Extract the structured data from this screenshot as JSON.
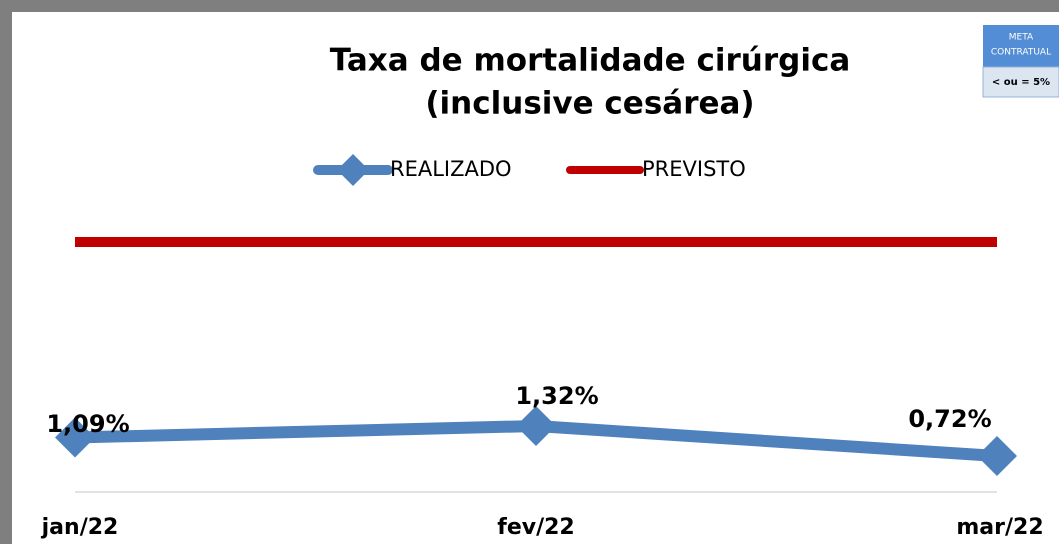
{
  "chart_data": {
    "type": "line",
    "title": [
      "Taxa de mortalidade cirúrgica",
      "(inclusive cesárea)"
    ],
    "categories": [
      "jan/22",
      "fev/22",
      "mar/22"
    ],
    "series": [
      {
        "name": "REALIZADO",
        "color": "#4f81bd",
        "values": [
          1.09,
          1.32,
          0.72
        ],
        "value_labels": [
          "1,09%",
          "1,32%",
          "0,72%"
        ],
        "marker": "diamond"
      },
      {
        "name": "PREVISTO",
        "color": "#c00000",
        "values": [
          5,
          5,
          5
        ]
      }
    ],
    "ylim": [
      0,
      6
    ],
    "meta_box": {
      "title": [
        "META",
        "CONTRATUAL"
      ],
      "value": "< ou = 5%"
    }
  }
}
